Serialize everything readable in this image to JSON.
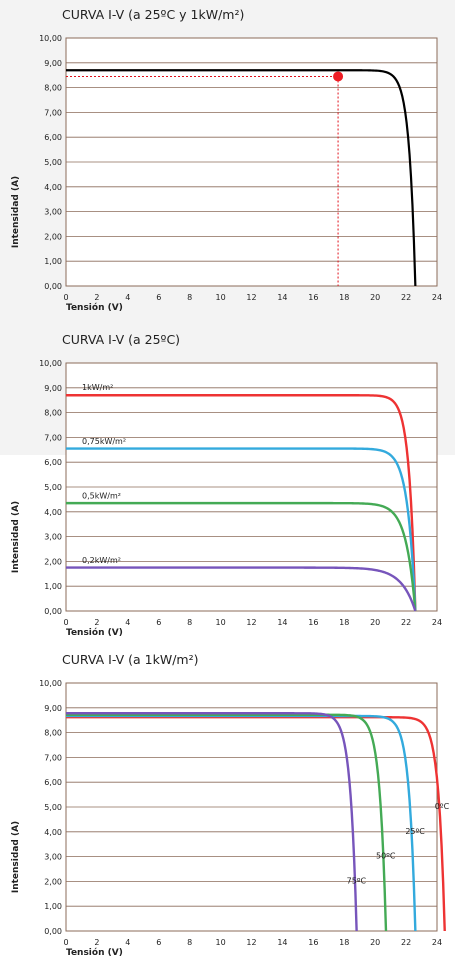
{
  "chart_data": [
    {
      "type": "line",
      "title": "CURVA I-V (a 25ºC y 1kW/m²)",
      "xlabel": "Tensión (V)",
      "ylabel": "Intensidad (A)",
      "xlim": [
        0,
        24
      ],
      "ylim": [
        0,
        10
      ],
      "x_ticks": [
        "0",
        "2",
        "4",
        "6",
        "8",
        "10",
        "12",
        "14",
        "16",
        "18",
        "20",
        "22",
        "24"
      ],
      "y_ticks": [
        "0,00",
        "1,00",
        "2,00",
        "3,00",
        "4,00",
        "5,00",
        "6,00",
        "7,00",
        "8,00",
        "9,00",
        "10,00"
      ],
      "grid": "horizontal",
      "series": [
        {
          "name": "",
          "color": "#000000",
          "isc": 8.7,
          "voc": 22.6,
          "knee": 0.4,
          "sharp": 3.2
        }
      ],
      "mpp": {
        "x": 17.6,
        "y": 8.45,
        "color": "#ee1c24",
        "guide_color": "#e0101a"
      }
    },
    {
      "type": "line",
      "title": "CURVA I-V (a 25ºC)",
      "xlabel": "Tensión (V)",
      "ylabel": "Intensidad (A)",
      "xlim": [
        0,
        24
      ],
      "ylim": [
        0,
        10
      ],
      "x_ticks": [
        "0",
        "2",
        "4",
        "6",
        "8",
        "10",
        "12",
        "14",
        "16",
        "18",
        "20",
        "22",
        "24"
      ],
      "y_ticks": [
        "0,00",
        "1,00",
        "2,00",
        "3,00",
        "4,00",
        "5,00",
        "6,00",
        "7,00",
        "8,00",
        "9,00",
        "10,00"
      ],
      "grid": "horizontal",
      "series": [
        {
          "name": "1kW/m²",
          "color": "#ee3333",
          "isc": 8.7,
          "voc": 22.6,
          "knee": 0.4,
          "sharp": 3.2
        },
        {
          "name": "0,75kW/m²",
          "color": "#33aadd",
          "isc": 6.55,
          "voc": 22.6,
          "knee": 0.5,
          "sharp": 3.0
        },
        {
          "name": "0,5kW/m²",
          "color": "#44aa55",
          "isc": 4.35,
          "voc": 22.6,
          "knee": 0.6,
          "sharp": 2.8
        },
        {
          "name": "0,2kW/m²",
          "color": "#7755bb",
          "isc": 1.75,
          "voc": 22.6,
          "knee": 0.9,
          "sharp": 2.6
        }
      ]
    },
    {
      "type": "line",
      "title": "CURVA I-V (a 1kW/m²)",
      "xlabel": "Tensión (V)",
      "ylabel": "Intensidad (A)",
      "xlim": [
        0,
        24
      ],
      "ylim": [
        0,
        10
      ],
      "x_ticks": [
        "0",
        "2",
        "4",
        "6",
        "8",
        "10",
        "12",
        "14",
        "16",
        "18",
        "20",
        "22",
        "24"
      ],
      "y_ticks": [
        "0,00",
        "1,00",
        "2,00",
        "3,00",
        "4,00",
        "5,00",
        "6,00",
        "7,00",
        "8,00",
        "9,00",
        "10,00"
      ],
      "grid": "horizontal",
      "series": [
        {
          "name": "0ºC",
          "color": "#ee3333",
          "isc": 8.62,
          "voc": 24.5,
          "knee": 0.4,
          "sharp": 3.2
        },
        {
          "name": "25ºC",
          "color": "#33aadd",
          "isc": 8.67,
          "voc": 22.6,
          "knee": 0.4,
          "sharp": 3.2
        },
        {
          "name": "50ºC",
          "color": "#44aa55",
          "isc": 8.72,
          "voc": 20.7,
          "knee": 0.4,
          "sharp": 3.2
        },
        {
          "name": "75ºC",
          "color": "#7755bb",
          "isc": 8.78,
          "voc": 18.8,
          "knee": 0.4,
          "sharp": 3.2
        }
      ]
    }
  ]
}
